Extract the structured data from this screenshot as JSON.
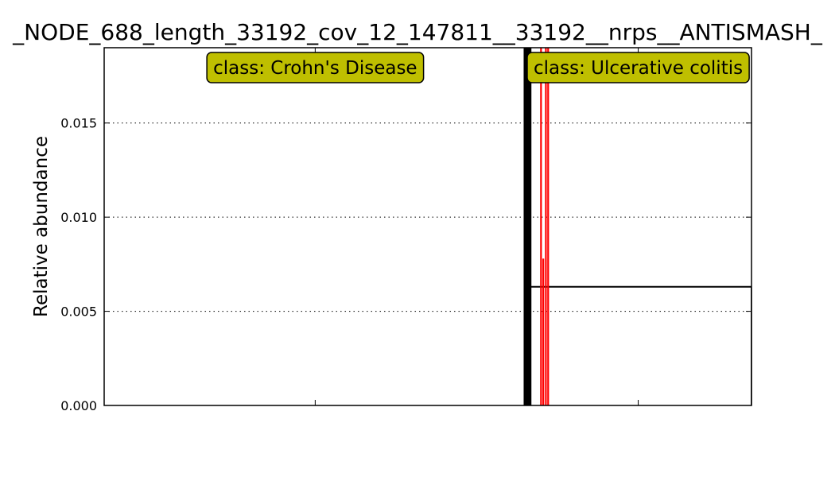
{
  "chart_data": {
    "type": "bar",
    "title": "_NODE_688_length_33192_cov_12_147811__33192__nrps__ANTISMASH_",
    "xlabel": "",
    "ylabel": "Relative abundance",
    "ylim": [
      0,
      0.019
    ],
    "yticks": [
      "0.000",
      "0.005",
      "0.010",
      "0.015"
    ],
    "ytick_values": [
      0,
      0.005,
      0.01,
      0.015
    ],
    "xlim": [
      0,
      100
    ],
    "grid": "horizontal-dotted",
    "class_labels": [
      {
        "text": "class: Crohn's Disease",
        "center_x": 32.6
      },
      {
        "text": "class: Ulcerative colitis",
        "center_x": 82.5
      }
    ],
    "class_label_color": "#bfbf00",
    "series": [
      {
        "color": "#000000",
        "bars": [
          {
            "x": 64.8,
            "width": 1.2,
            "value": 0.0195
          },
          {
            "x": 65.2,
            "width": 34.8,
            "value": 0.0063
          }
        ]
      },
      {
        "color": "#ff0000",
        "bars": [
          {
            "x": 67.35,
            "width": 0.25,
            "value": 0.0195
          },
          {
            "x": 67.7,
            "width": 0.25,
            "value": 0.0078
          },
          {
            "x": 68.1,
            "width": 0.25,
            "value": 0.0195
          },
          {
            "x": 68.45,
            "width": 0.25,
            "value": 0.0195
          }
        ]
      }
    ],
    "x_minor_ticks": [
      32.6,
      82.5
    ]
  }
}
